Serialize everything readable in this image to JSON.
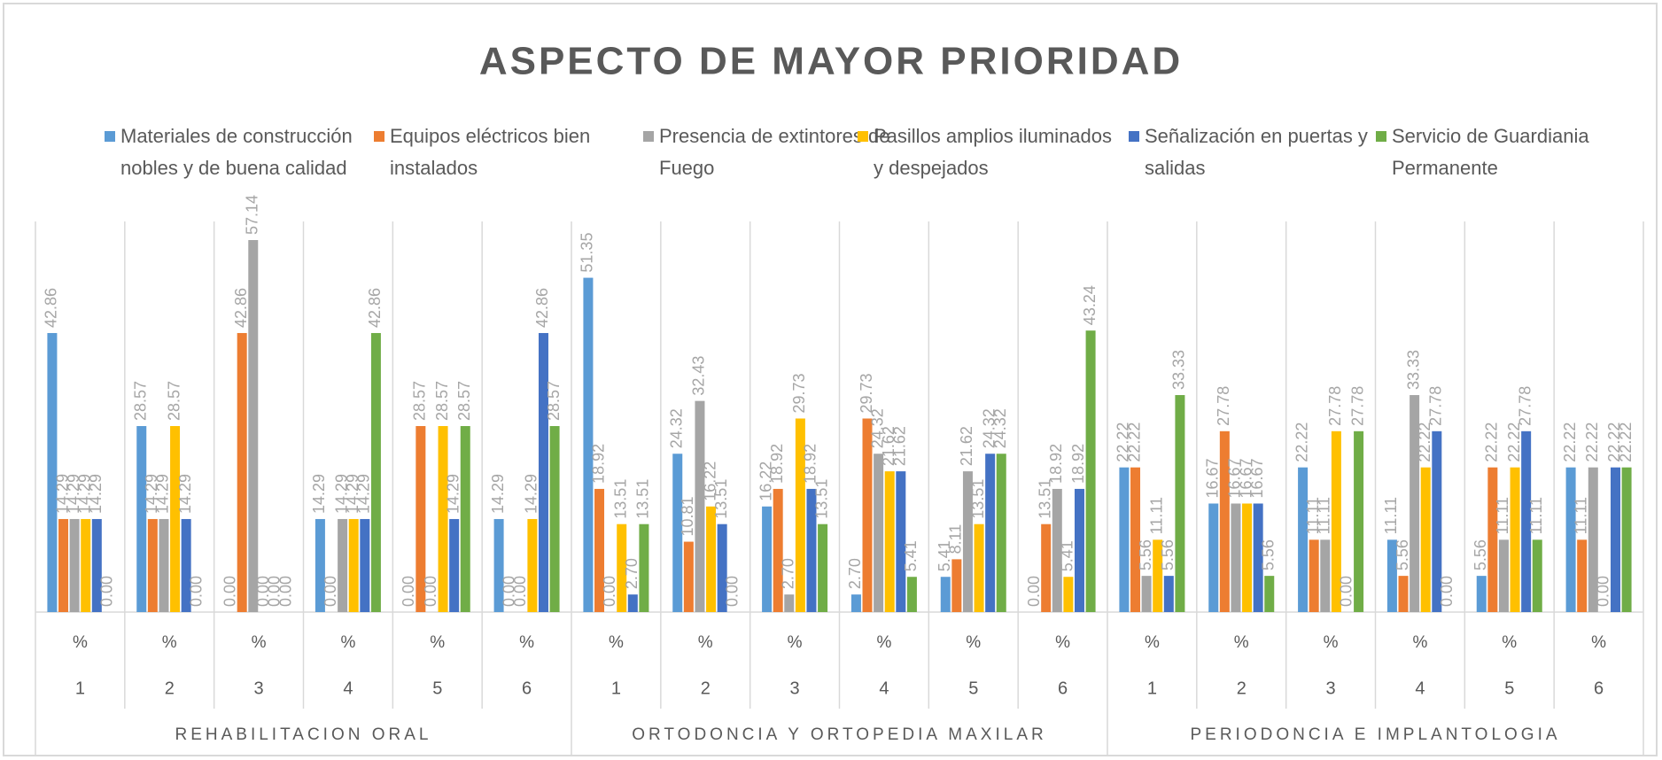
{
  "chart_data": {
    "type": "bar",
    "title": "ASPECTO DE MAYOR PRIORIDAD",
    "categories": [
      "1",
      "2",
      "3",
      "4",
      "5",
      "6",
      "1",
      "2",
      "3",
      "4",
      "5",
      "6",
      "1",
      "2",
      "3",
      "4",
      "5",
      "6"
    ],
    "category_sublabels": [
      "%",
      "%",
      "%",
      "%",
      "%",
      "%",
      "%",
      "%",
      "%",
      "%",
      "%",
      "%",
      "%",
      "%",
      "%",
      "%",
      "%",
      "%"
    ],
    "groups": [
      "REHABILITACION ORAL",
      "ORTODONCIA Y ORTOPEDIA MAXILAR",
      "PERIODONCIA E IMPLANTOLOGIA"
    ],
    "ylim": [
      0,
      60
    ],
    "series": [
      {
        "name": "Materiales de construcción nobles y de buena calidad",
        "color": "#5b9bd5",
        "values": [
          42.86,
          28.57,
          0,
          14.29,
          0,
          14.29,
          51.35,
          24.32,
          16.22,
          2.7,
          5.41,
          0,
          22.22,
          16.67,
          22.22,
          11.11,
          5.56,
          22.22
        ],
        "value_labels": [
          "42.86",
          "28.57",
          "0.00",
          "14.29",
          "0.00",
          "14.29",
          "51.35",
          "24.32",
          "16.22",
          "2.70",
          "5.41",
          "0.00",
          "22.22",
          "16.67",
          "22.22",
          "11.11",
          "5.56",
          "22.22"
        ]
      },
      {
        "name": "Equipos eléctricos bien instalados",
        "color": "#ed7d31",
        "values": [
          14.29,
          14.29,
          42.86,
          0,
          28.57,
          0,
          18.92,
          10.81,
          18.92,
          29.73,
          8.11,
          13.51,
          22.22,
          27.78,
          11.11,
          5.56,
          22.22,
          11.11
        ],
        "value_labels": [
          "14.29",
          "14.29",
          "42.86",
          "0.00",
          "28.57",
          "0.00",
          "18.92",
          "10.81",
          "18.92",
          "29.73",
          "8.11",
          "13.51",
          "22.22",
          "27.78",
          "11.11",
          "5.56",
          "22.22",
          "11.11"
        ]
      },
      {
        "name": "Presencia de extintores de Fuego",
        "color": "#a5a5a5",
        "values": [
          14.29,
          14.29,
          57.14,
          14.29,
          0,
          0,
          0,
          32.43,
          2.7,
          24.32,
          21.62,
          18.92,
          5.56,
          16.67,
          11.11,
          33.33,
          11.11,
          22.22
        ],
        "value_labels": [
          "14.29",
          "14.29",
          "57.14",
          "14.29",
          "0.00",
          "0.00",
          "0.00",
          "32.43",
          "2.70",
          "24.32",
          "21.62",
          "18.92",
          "5.56",
          "16.67",
          "11.11",
          "33.33",
          "11.11",
          "22.22"
        ]
      },
      {
        "name": "Pasillos amplios iluminados y despejados",
        "color": "#ffc000",
        "values": [
          14.29,
          28.57,
          0,
          14.29,
          28.57,
          14.29,
          13.51,
          16.22,
          29.73,
          21.62,
          13.51,
          5.41,
          11.11,
          16.67,
          27.78,
          22.22,
          22.22,
          0
        ],
        "value_labels": [
          "14.29",
          "28.57",
          "0.00",
          "14.29",
          "28.57",
          "14.29",
          "13.51",
          "16.22",
          "29.73",
          "21.62",
          "13.51",
          "5.41",
          "11.11",
          "16.67",
          "27.78",
          "22.22",
          "22.22",
          "0.00"
        ]
      },
      {
        "name": "Señalización en puertas y salidas",
        "color": "#4472c4",
        "values": [
          14.29,
          14.29,
          0,
          14.29,
          14.29,
          42.86,
          2.7,
          13.51,
          18.92,
          21.62,
          24.32,
          18.92,
          5.56,
          16.67,
          0,
          27.78,
          27.78,
          22.22
        ],
        "value_labels": [
          "14.29",
          "14.29",
          "0.00",
          "14.29",
          "14.29",
          "42.86",
          "2.70",
          "13.51",
          "18.92",
          "21.62",
          "24.32",
          "18.92",
          "5.56",
          "16.67",
          "0.00",
          "27.78",
          "27.78",
          "22.22"
        ]
      },
      {
        "name": "Servicio de Guardiania Permanente",
        "color": "#70ad47",
        "values": [
          0,
          0,
          0,
          42.86,
          28.57,
          28.57,
          13.51,
          0,
          13.51,
          5.41,
          24.32,
          43.24,
          33.33,
          5.56,
          27.78,
          0,
          11.11,
          22.22
        ],
        "value_labels": [
          "0.00",
          "0.00",
          "0.00",
          "42.86",
          "28.57",
          "28.57",
          "13.51",
          "0.00",
          "13.51",
          "5.41",
          "24.32",
          "43.24",
          "33.33",
          "5.56",
          "27.78",
          "0.00",
          "11.11",
          "22.22"
        ]
      }
    ]
  }
}
